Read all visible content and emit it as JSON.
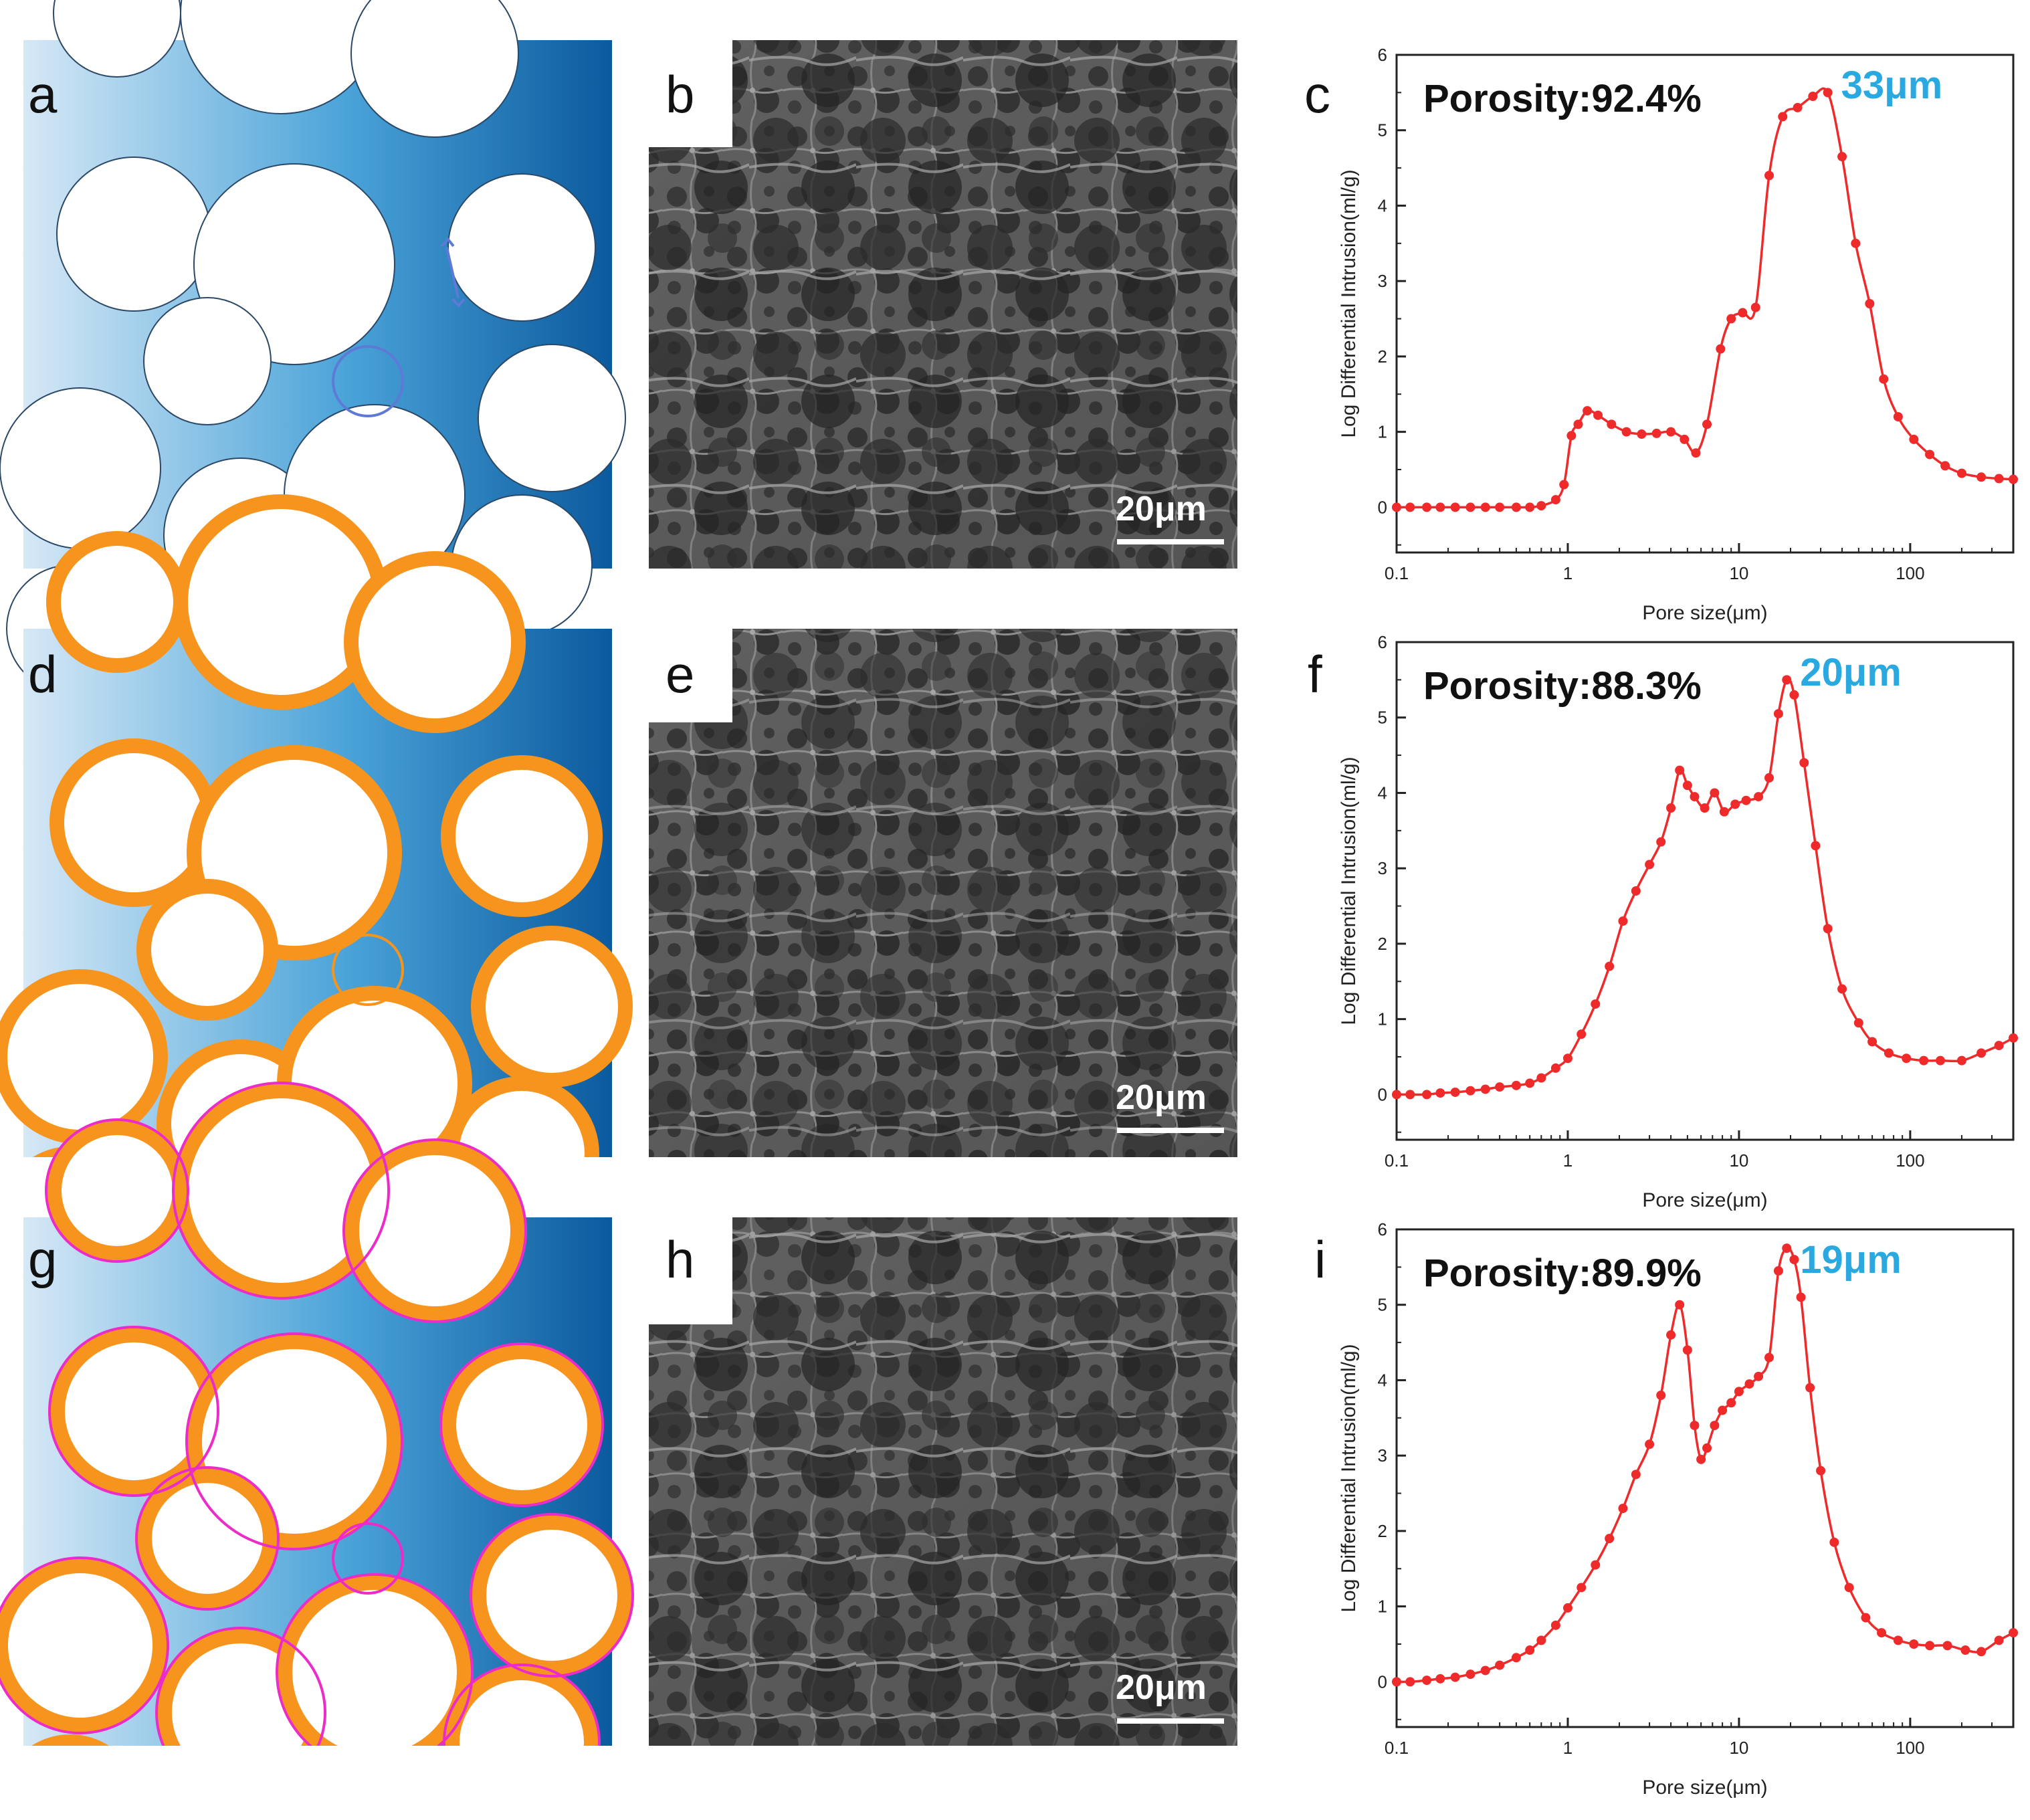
{
  "panel_labels": [
    "a",
    "b",
    "c",
    "d",
    "e",
    "f",
    "g",
    "h",
    "i"
  ],
  "scale_bar_label": "20μm",
  "colors": {
    "curve": "#ee2a2a",
    "peak_label": "#29a9e0",
    "pore_fill": "#2f8fc8",
    "gradient_dark": "#0b5a9e",
    "coating_orange": "#f7941d",
    "coating_magenta": "#ec2cc8",
    "sem_bg": "#4a4a4a"
  },
  "chart_data": [
    {
      "type": "line",
      "panel": "c",
      "porosity_label": "Porosity:92.4%",
      "peak_label": "33μm",
      "xlabel": "Pore size(μm)",
      "ylabel": "Log Differential Intrusion(ml/g)",
      "xscale": "log",
      "xlim": [
        0.1,
        400
      ],
      "ylim": [
        -0.6,
        6
      ],
      "xticks": [
        "0.1",
        "1",
        "10",
        "100"
      ],
      "yticks": [
        "0",
        "1",
        "2",
        "3",
        "4",
        "5",
        "6"
      ],
      "x": [
        0.1,
        0.12,
        0.15,
        0.18,
        0.22,
        0.27,
        0.33,
        0.4,
        0.5,
        0.6,
        0.7,
        0.85,
        0.95,
        1.05,
        1.15,
        1.3,
        1.5,
        1.8,
        2.2,
        2.7,
        3.3,
        4,
        4.8,
        5.6,
        6.5,
        7.8,
        9,
        10.5,
        12.5,
        15,
        18,
        22,
        27,
        33,
        40,
        48,
        58,
        70,
        85,
        105,
        130,
        160,
        200,
        260,
        330,
        400
      ],
      "y": [
        0,
        0,
        0,
        0,
        0,
        0,
        0,
        0,
        0,
        0,
        0.02,
        0.1,
        0.3,
        0.95,
        1.1,
        1.28,
        1.22,
        1.1,
        1.0,
        0.97,
        0.98,
        1.0,
        0.9,
        0.72,
        1.1,
        2.1,
        2.5,
        2.58,
        2.65,
        4.4,
        5.18,
        5.3,
        5.45,
        5.5,
        4.65,
        3.5,
        2.7,
        1.7,
        1.2,
        0.9,
        0.7,
        0.55,
        0.45,
        0.4,
        0.38,
        0.37
      ]
    },
    {
      "type": "line",
      "panel": "f",
      "porosity_label": "Porosity:88.3%",
      "peak_label": "20μm",
      "xlabel": "Pore size(μm)",
      "ylabel": "Log Differential Intrusion(ml/g)",
      "xscale": "log",
      "xlim": [
        0.1,
        400
      ],
      "ylim": [
        -0.6,
        6
      ],
      "xticks": [
        "0.1",
        "1",
        "10",
        "100"
      ],
      "yticks": [
        "0",
        "1",
        "2",
        "3",
        "4",
        "5",
        "6"
      ],
      "x": [
        0.1,
        0.12,
        0.15,
        0.18,
        0.22,
        0.27,
        0.33,
        0.4,
        0.5,
        0.6,
        0.7,
        0.85,
        1,
        1.2,
        1.45,
        1.75,
        2.1,
        2.5,
        3,
        3.5,
        4,
        4.5,
        5,
        5.5,
        6.3,
        7.2,
        8.2,
        9.5,
        11,
        13,
        15,
        17,
        19,
        21,
        24,
        28,
        33,
        40,
        50,
        60,
        75,
        95,
        120,
        150,
        200,
        260,
        330,
        400
      ],
      "y": [
        0,
        0,
        0,
        0.02,
        0.03,
        0.05,
        0.07,
        0.1,
        0.12,
        0.15,
        0.22,
        0.35,
        0.48,
        0.8,
        1.2,
        1.7,
        2.3,
        2.7,
        3.05,
        3.35,
        3.8,
        4.3,
        4.1,
        3.95,
        3.8,
        4.0,
        3.75,
        3.85,
        3.9,
        3.95,
        4.2,
        5.05,
        5.5,
        5.3,
        4.4,
        3.3,
        2.2,
        1.4,
        0.95,
        0.7,
        0.55,
        0.48,
        0.45,
        0.45,
        0.45,
        0.55,
        0.65,
        0.75
      ]
    },
    {
      "type": "line",
      "panel": "i",
      "porosity_label": "Porosity:89.9%",
      "peak_label": "19μm",
      "xlabel": "Pore size(μm)",
      "ylabel": "Log Differential Intrusion(ml/g)",
      "xscale": "log",
      "xlim": [
        0.1,
        400
      ],
      "ylim": [
        -0.6,
        6
      ],
      "xticks": [
        "0.1",
        "1",
        "10",
        "100"
      ],
      "yticks": [
        "0",
        "1",
        "2",
        "3",
        "4",
        "5",
        "6"
      ],
      "x": [
        0.1,
        0.12,
        0.15,
        0.18,
        0.22,
        0.27,
        0.33,
        0.4,
        0.5,
        0.6,
        0.7,
        0.85,
        1,
        1.2,
        1.45,
        1.75,
        2.1,
        2.5,
        3,
        3.5,
        4,
        4.5,
        5,
        5.5,
        6,
        6.5,
        7.2,
        8,
        9,
        10,
        11.5,
        13,
        15,
        17,
        19,
        21,
        23,
        26,
        30,
        36,
        44,
        55,
        68,
        85,
        105,
        130,
        165,
        210,
        260,
        330,
        400
      ],
      "y": [
        0,
        0,
        0.02,
        0.04,
        0.06,
        0.1,
        0.15,
        0.22,
        0.32,
        0.42,
        0.55,
        0.75,
        0.98,
        1.25,
        1.55,
        1.9,
        2.3,
        2.75,
        3.15,
        3.8,
        4.6,
        5.0,
        4.4,
        3.4,
        2.95,
        3.1,
        3.4,
        3.6,
        3.7,
        3.85,
        3.95,
        4.05,
        4.3,
        5.45,
        5.75,
        5.6,
        5.1,
        3.9,
        2.8,
        1.85,
        1.25,
        0.85,
        0.65,
        0.55,
        0.5,
        0.48,
        0.48,
        0.42,
        0.4,
        0.55,
        0.65
      ]
    }
  ]
}
